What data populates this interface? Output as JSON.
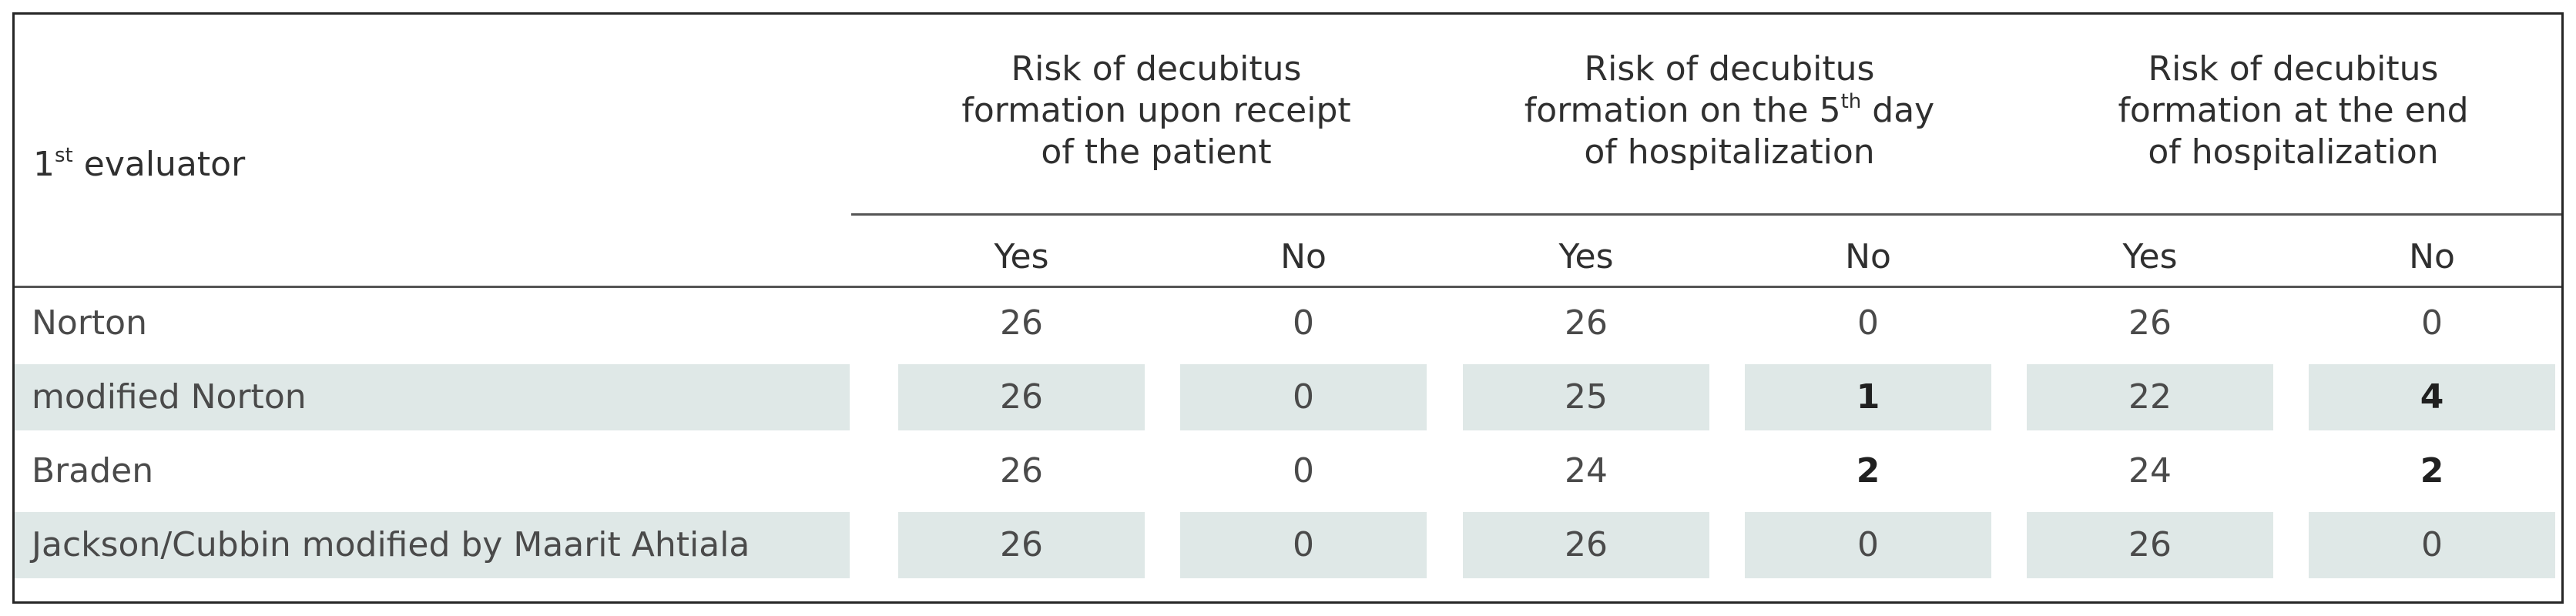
{
  "table": {
    "corner_label": {
      "prefix": "1",
      "sup": "st",
      "suffix": "evaluator"
    },
    "groups": [
      {
        "line1": "Risk of decubitus",
        "line2": "formation upon receipt",
        "line3": "of the patient"
      },
      {
        "line1": "Risk of decubitus",
        "line2_prefix": "formation on the 5",
        "line2_sup": "th",
        "line2_suffix": " day",
        "line3": "of hospitalization"
      },
      {
        "line1": "Risk of decubitus",
        "line2": "formation at the end",
        "line3": "of hospitalization"
      }
    ],
    "subheaders": [
      "Yes",
      "No",
      "Yes",
      "No",
      "Yes",
      "No"
    ],
    "rows": [
      {
        "label": "Norton",
        "values": [
          "26",
          "0",
          "26",
          "0",
          "26",
          "0"
        ],
        "bold": [
          false,
          false,
          false,
          false,
          false,
          false
        ],
        "shaded": false
      },
      {
        "label": "modified Norton",
        "values": [
          "26",
          "0",
          "25",
          "1",
          "22",
          "4"
        ],
        "bold": [
          false,
          false,
          false,
          true,
          false,
          true
        ],
        "shaded": true
      },
      {
        "label": "Braden",
        "values": [
          "26",
          "0",
          "24",
          "2",
          "24",
          "2"
        ],
        "bold": [
          false,
          false,
          false,
          true,
          false,
          true
        ],
        "shaded": false
      },
      {
        "label": "Jackson/Cubbin modified by Maarit Ahtiala",
        "values": [
          "26",
          "0",
          "26",
          "0",
          "26",
          "0"
        ],
        "bold": [
          false,
          false,
          false,
          false,
          false,
          false
        ],
        "shaded": true
      }
    ]
  }
}
